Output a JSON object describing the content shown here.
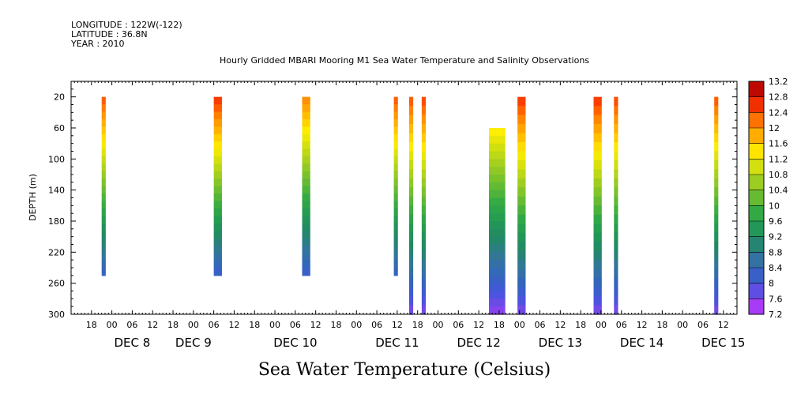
{
  "header": {
    "longitude": "LONGITUDE : 122W(-122)",
    "latitude": "LATITUDE : 36.8N",
    "year": "YEAR : 2010"
  },
  "chart_data": {
    "type": "heatmap",
    "title": "Hourly Gridded MBARI Mooring M1 Sea Water Temperature and Salinity Observations",
    "colorbar_title": "Sea Water Temperature (Celsius)",
    "ylabel": "DEPTH (m)",
    "y_axis_inverted": true,
    "ylim": [
      0,
      300
    ],
    "y_ticks": [
      "20",
      "60",
      "100",
      "140",
      "180",
      "220",
      "260",
      "300"
    ],
    "x_unit": "hours since DEC 7 12:00",
    "xlim": [
      0,
      196
    ],
    "x_tick_labels": [
      "18",
      "00",
      "06",
      "12",
      "18",
      "00",
      "06",
      "12",
      "18",
      "00",
      "06",
      "12",
      "18",
      "00",
      "06",
      "12",
      "18",
      "00",
      "06",
      "12",
      "18",
      "00",
      "06",
      "12",
      "18",
      "00",
      "06",
      "12",
      "18",
      "00",
      "06",
      "12"
    ],
    "x_day_labels": [
      {
        "label": "DEC  8",
        "hours": 18
      },
      {
        "label": "DEC  9",
        "hours": 36
      },
      {
        "label": "DEC 10",
        "hours": 66
      },
      {
        "label": "DEC 11",
        "hours": 96
      },
      {
        "label": "DEC 12",
        "hours": 120
      },
      {
        "label": "DEC 13",
        "hours": 144
      },
      {
        "label": "DEC 14",
        "hours": 168
      },
      {
        "label": "DEC 15",
        "hours": 192
      }
    ],
    "colorbar": {
      "min": 7.2,
      "max": 13.2,
      "step": 0.4,
      "tick_labels": [
        "13.2",
        "12.8",
        "12.4",
        "12",
        "11.6",
        "11.2",
        "10.8",
        "10.4",
        "10",
        "9.6",
        "9.2",
        "8.8",
        "8.4",
        "8",
        "7.6",
        "7.2"
      ]
    },
    "columns": [
      {
        "x_start": 9.0,
        "x_end": 10.2,
        "depth_top": 20,
        "depth_bottom": 250,
        "temp_top": 12.4,
        "temp_bottom": 8.2
      },
      {
        "x_start": 42.0,
        "x_end": 44.4,
        "depth_top": 20,
        "depth_bottom": 250,
        "temp_top": 12.6,
        "temp_bottom": 8.1
      },
      {
        "x_start": 68.0,
        "x_end": 70.4,
        "depth_top": 20,
        "depth_bottom": 250,
        "temp_top": 12.1,
        "temp_bottom": 8.1
      },
      {
        "x_start": 95.0,
        "x_end": 96.2,
        "depth_top": 20,
        "depth_bottom": 250,
        "temp_top": 12.4,
        "temp_bottom": 8.2
      },
      {
        "x_start": 99.5,
        "x_end": 100.7,
        "depth_top": 20,
        "depth_bottom": 300,
        "temp_top": 12.4,
        "temp_bottom": 7.6
      },
      {
        "x_start": 103.2,
        "x_end": 104.4,
        "depth_top": 20,
        "depth_bottom": 300,
        "temp_top": 12.5,
        "temp_bottom": 7.6
      },
      {
        "x_start": 123.0,
        "x_end": 127.8,
        "depth_top": 60,
        "depth_bottom": 300,
        "temp_top": 11.4,
        "temp_bottom": 7.5
      },
      {
        "x_start": 131.4,
        "x_end": 133.8,
        "depth_top": 20,
        "depth_bottom": 300,
        "temp_top": 12.6,
        "temp_bottom": 7.6
      },
      {
        "x_start": 153.8,
        "x_end": 156.2,
        "depth_top": 20,
        "depth_bottom": 300,
        "temp_top": 12.6,
        "temp_bottom": 7.6
      },
      {
        "x_start": 159.8,
        "x_end": 161.0,
        "depth_top": 20,
        "depth_bottom": 300,
        "temp_top": 12.5,
        "temp_bottom": 7.6
      },
      {
        "x_start": 189.3,
        "x_end": 190.5,
        "depth_top": 20,
        "depth_bottom": 300,
        "temp_top": 12.4,
        "temp_bottom": 7.6
      }
    ]
  }
}
